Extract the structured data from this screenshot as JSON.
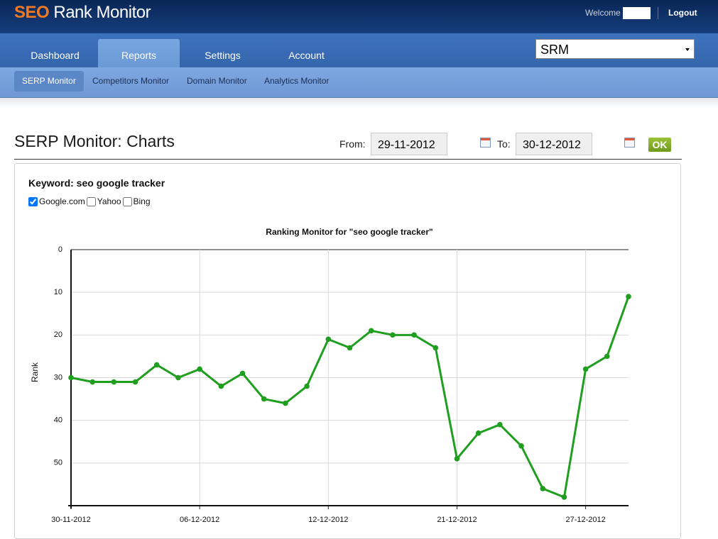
{
  "header": {
    "logo_brand": "SEO",
    "logo_rest": "Rank Monitor",
    "welcome": "Welcome",
    "logout": "Logout"
  },
  "nav": {
    "tabs": [
      "Dashboard",
      "Reports",
      "Settings",
      "Account"
    ],
    "site_select": "SRM"
  },
  "subnav": [
    "SERP Monitor",
    "Competitors Monitor",
    "Domain Monitor",
    "Analytics Monitor"
  ],
  "page_title": "SERP Monitor: Charts",
  "filter": {
    "from_label": "From:",
    "from": "29-11-2012",
    "to_label": "To:",
    "to": "30-12-2012",
    "ok": "OK"
  },
  "keyword": "Keyword: seo google tracker",
  "engines": [
    {
      "label": "Google.com",
      "checked": true
    },
    {
      "label": "Yahoo",
      "checked": false
    },
    {
      "label": "Bing",
      "checked": false
    }
  ],
  "chart_data": {
    "type": "line",
    "title": "Ranking Monitor for \"seo google tracker\"",
    "y_label": "Rank",
    "categories": [
      "30-11-2012",
      null,
      null,
      null,
      null,
      null,
      "06-12-2012",
      null,
      null,
      null,
      null,
      null,
      "12-12-2012",
      null,
      null,
      null,
      null,
      null,
      "21-12-2012",
      null,
      null,
      null,
      null,
      null,
      "27-12-2012",
      null,
      null
    ],
    "values": [
      30,
      31,
      31,
      31,
      27,
      30,
      28,
      32,
      29,
      35,
      36,
      32,
      21,
      23,
      19,
      20,
      20,
      23,
      49,
      43,
      41,
      46,
      56,
      58,
      28,
      25,
      11
    ],
    "color": "#1f9e1f",
    "ylim": [
      0,
      60
    ],
    "y_inverted": true,
    "yticks": [
      0,
      10,
      20,
      30,
      40,
      50
    ],
    "grid": true
  }
}
